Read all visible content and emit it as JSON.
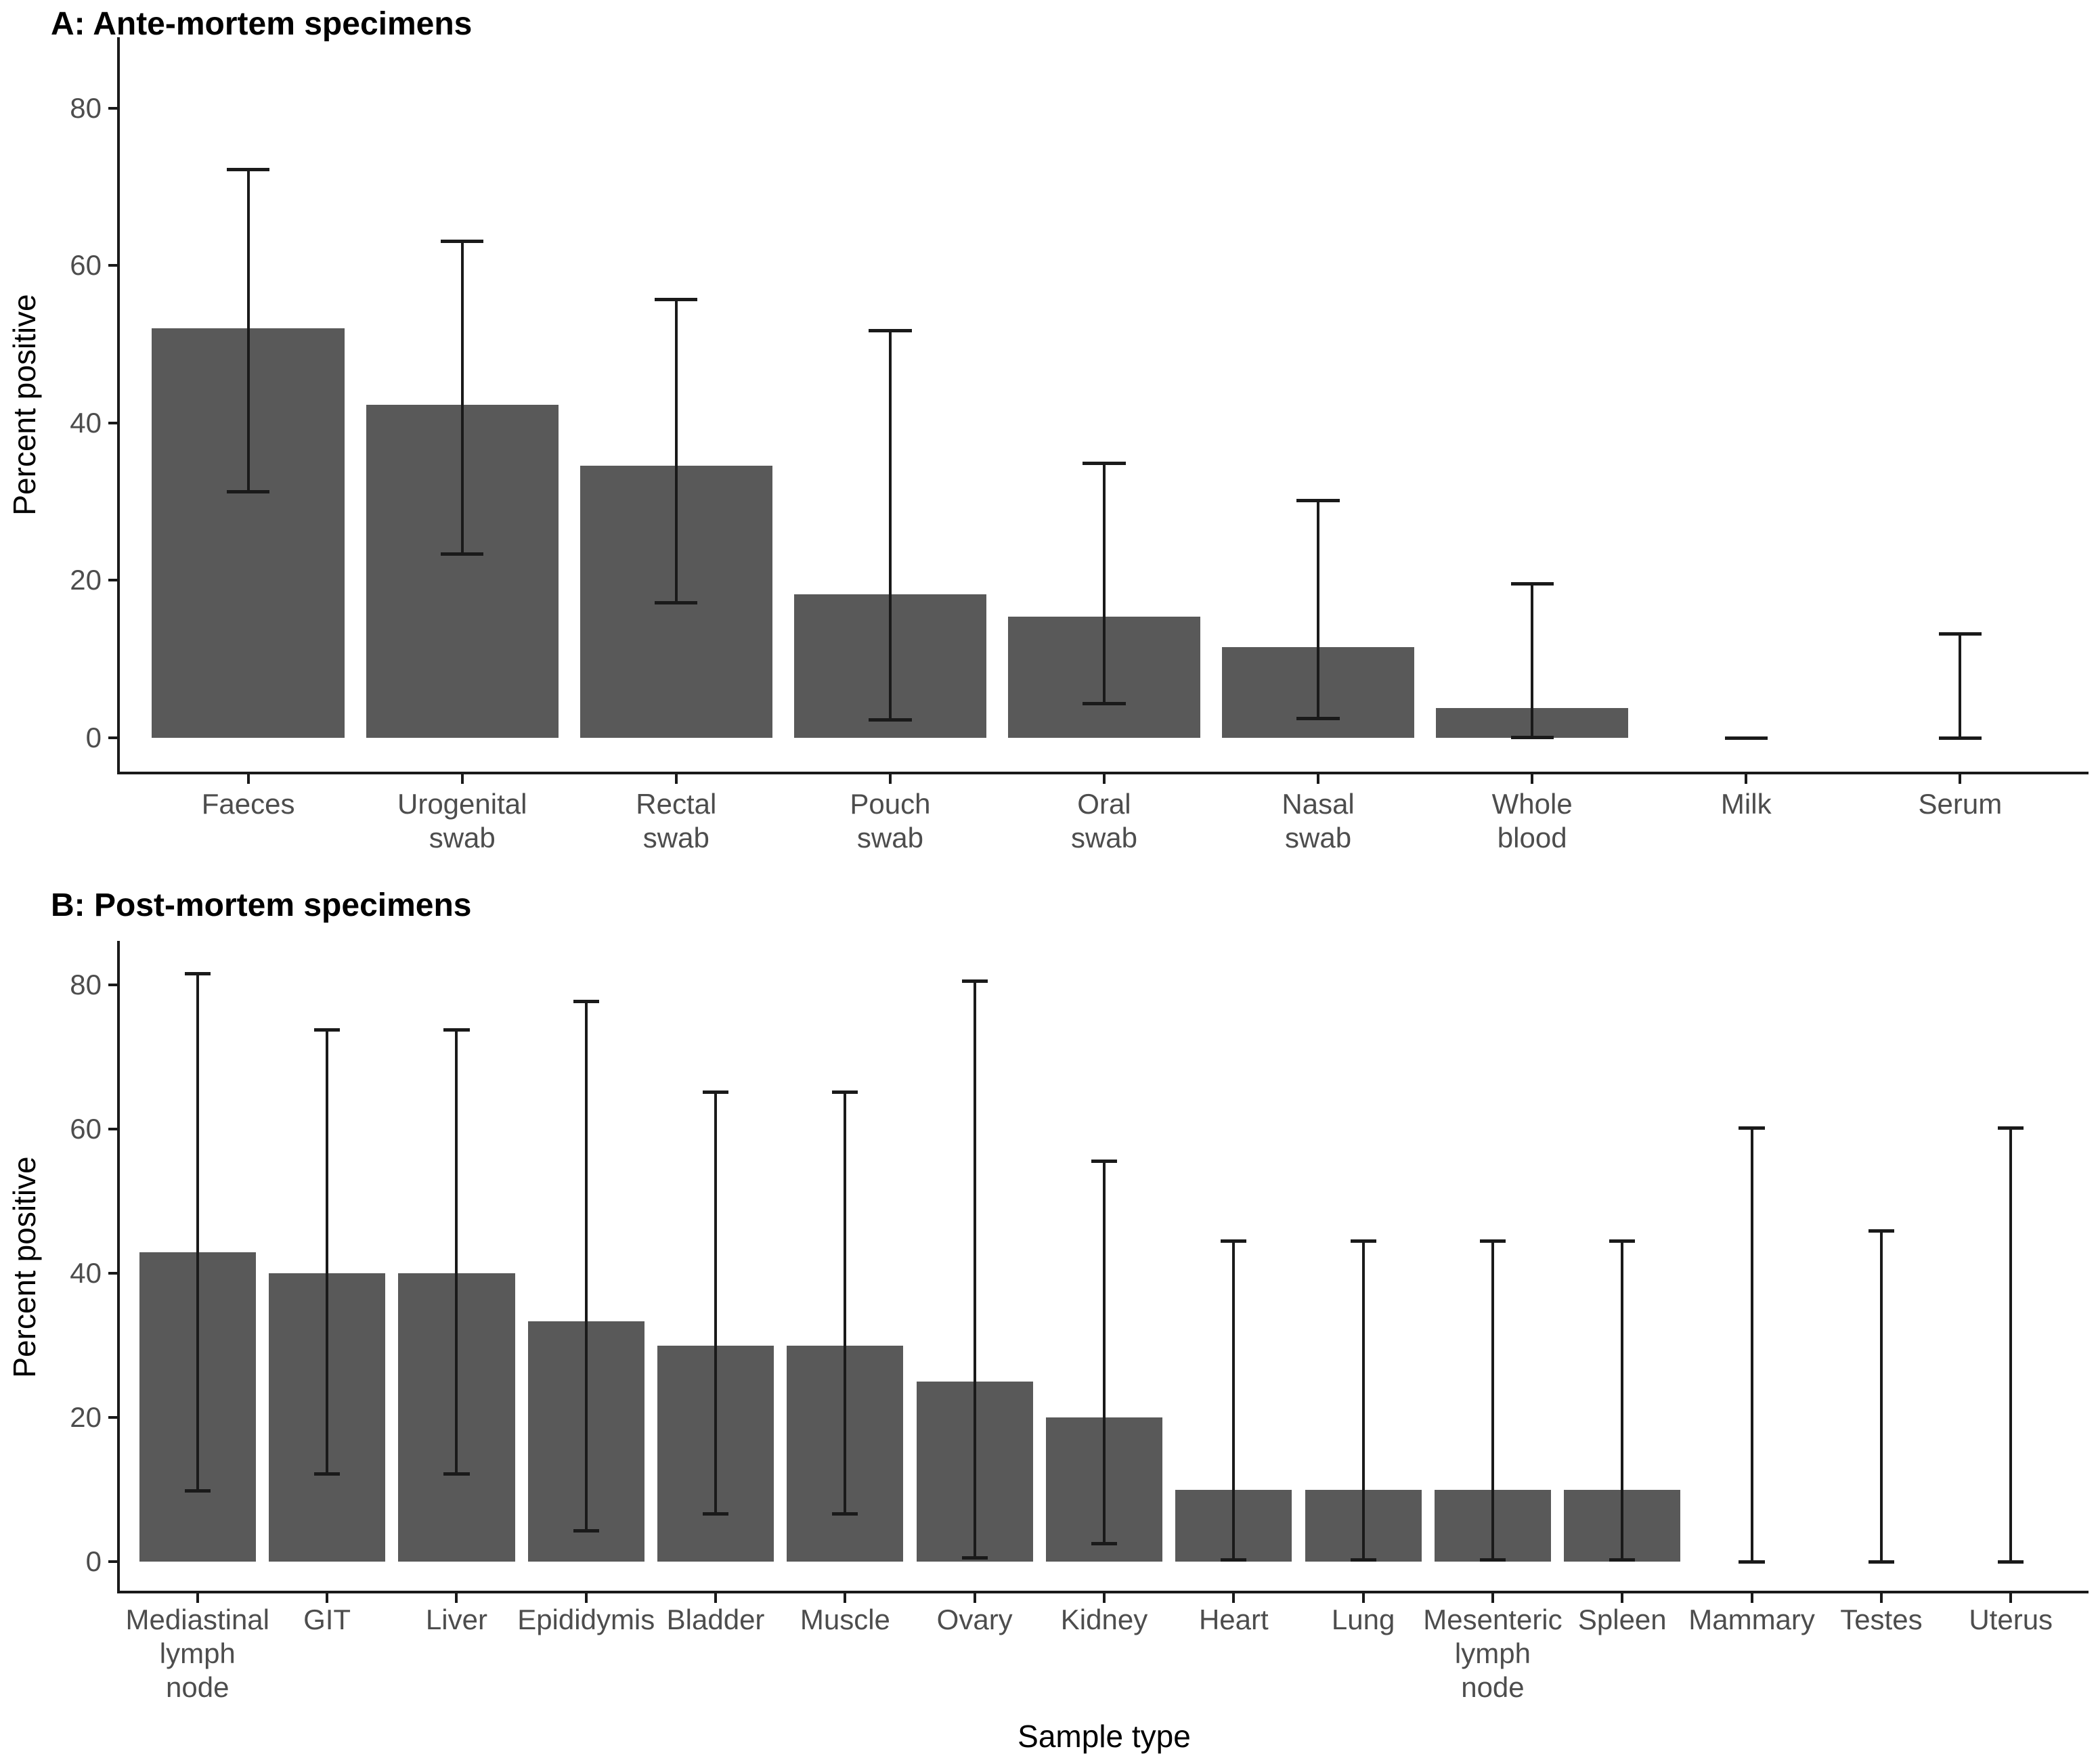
{
  "figure": {
    "x_axis_title": "Sample type",
    "y_axis_title": "Percent positive",
    "bar_fill_color": "#595959",
    "line_color": "#1a1a1a",
    "tick_label_color": "#4d4d4d",
    "background_color": "#ffffff"
  },
  "chart_data": [
    {
      "type": "bar",
      "panel": "A",
      "title": "A: Ante-mortem specimens",
      "ylabel": "Percent positive",
      "xlabel": "",
      "ylim": [
        0,
        88
      ],
      "yticks": [
        0,
        20,
        40,
        60,
        80
      ],
      "grid": false,
      "legend": false,
      "error_bar_meaning": "95% confidence interval",
      "categories": [
        "Faeces",
        "Urogenital swab",
        "Rectal swab",
        "Pouch swab",
        "Oral swab",
        "Nasal swab",
        "Whole blood",
        "Milk",
        "Serum"
      ],
      "category_label_lines": [
        [
          "Faeces"
        ],
        [
          "Urogenital",
          "swab"
        ],
        [
          "Rectal",
          "swab"
        ],
        [
          "Pouch",
          "swab"
        ],
        [
          "Oral",
          "swab"
        ],
        [
          "Nasal",
          "swab"
        ],
        [
          "Whole",
          "blood"
        ],
        [
          "Milk"
        ],
        [
          "Serum"
        ]
      ],
      "values": [
        52.0,
        42.3,
        34.6,
        18.2,
        15.4,
        11.5,
        3.8,
        0,
        0
      ],
      "error_low": [
        31.3,
        23.4,
        17.2,
        2.3,
        4.4,
        2.5,
        0.1,
        0,
        0
      ],
      "error_high": [
        72.2,
        63.1,
        55.7,
        51.8,
        34.9,
        30.2,
        19.6,
        0,
        13.2
      ]
    },
    {
      "type": "bar",
      "panel": "B",
      "title": "B: Post-mortem specimens",
      "ylabel": "Percent positive",
      "xlabel": "Sample type",
      "ylim": [
        0,
        86
      ],
      "yticks": [
        0,
        20,
        40,
        60,
        80
      ],
      "grid": false,
      "legend": false,
      "error_bar_meaning": "95% confidence interval",
      "categories": [
        "Mediastinal lymph node",
        "GIT",
        "Liver",
        "Epididymis",
        "Bladder",
        "Muscle",
        "Ovary",
        "Kidney",
        "Heart",
        "Lung",
        "Mesenteric lymph node",
        "Spleen",
        "Mammary",
        "Testes",
        "Uterus"
      ],
      "category_label_lines": [
        [
          "Mediastinal",
          "lymph",
          "node"
        ],
        [
          "GIT"
        ],
        [
          "Liver"
        ],
        [
          "Epididymis"
        ],
        [
          "Bladder"
        ],
        [
          "Muscle"
        ],
        [
          "Ovary"
        ],
        [
          "Kidney"
        ],
        [
          "Heart"
        ],
        [
          "Lung"
        ],
        [
          "Mesenteric",
          "lymph",
          "node"
        ],
        [
          "Spleen"
        ],
        [
          "Mammary"
        ],
        [
          "Testes"
        ],
        [
          "Uterus"
        ]
      ],
      "values": [
        42.9,
        40,
        40,
        33.3,
        30,
        30,
        25,
        20,
        10,
        10,
        10,
        10,
        0,
        0,
        0
      ],
      "error_low": [
        9.9,
        12.2,
        12.2,
        4.3,
        6.7,
        6.7,
        0.6,
        2.5,
        0.3,
        0.3,
        0.3,
        0.3,
        0,
        0,
        0
      ],
      "error_high": [
        81.6,
        73.8,
        73.8,
        77.7,
        65.2,
        65.2,
        80.6,
        55.6,
        44.5,
        44.5,
        44.5,
        44.5,
        60.2,
        45.9,
        60.2
      ]
    }
  ]
}
